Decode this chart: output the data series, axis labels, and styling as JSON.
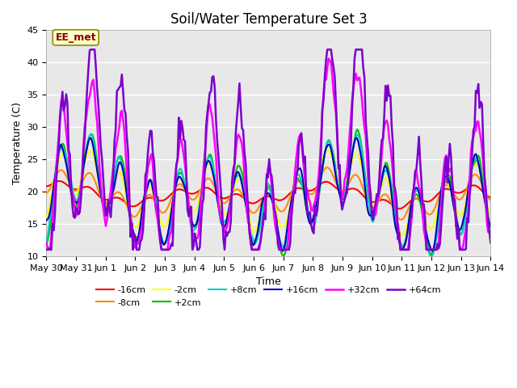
{
  "title": "Soil/Water Temperature Set 3",
  "xlabel": "Time",
  "ylabel": "Temperature (C)",
  "ylim": [
    10,
    45
  ],
  "annotation_text": "EE_met",
  "annotation_bbox_facecolor": "#FFFFCC",
  "annotation_bbox_edgecolor": "#8B8B00",
  "annotation_textcolor": "#8B0000",
  "fig_facecolor": "#FFFFFF",
  "plot_bg_color": "#E8E8E8",
  "series": [
    {
      "label": "-16cm",
      "color": "#FF0000",
      "lw": 1.5
    },
    {
      "label": "-8cm",
      "color": "#FF8C00",
      "lw": 1.5
    },
    {
      "label": "-2cm",
      "color": "#FFFF00",
      "lw": 1.5
    },
    {
      "label": "+2cm",
      "color": "#00BB00",
      "lw": 1.5
    },
    {
      "label": "+8cm",
      "color": "#00CCCC",
      "lw": 1.5
    },
    {
      "label": "+16cm",
      "color": "#0000BB",
      "lw": 1.5
    },
    {
      "label": "+32cm",
      "color": "#FF00FF",
      "lw": 1.8
    },
    {
      "label": "+64cm",
      "color": "#7B00CC",
      "lw": 1.8
    }
  ],
  "xtick_labels": [
    "May 30",
    "May 31",
    "Jun 1",
    "Jun 2",
    "Jun 3",
    "Jun 4",
    "Jun 5",
    "Jun 6",
    "Jun 7",
    "Jun 8",
    "Jun 9",
    "Jun 10",
    "Jun 11",
    "Jun 12",
    "Jun 13",
    "Jun 14"
  ],
  "ytick_vals": [
    10,
    15,
    20,
    25,
    30,
    35,
    40,
    45
  ],
  "grid_color": "#FFFFFF",
  "title_fontsize": 12,
  "axis_label_fontsize": 9,
  "tick_fontsize": 8,
  "legend_fontsize": 8
}
